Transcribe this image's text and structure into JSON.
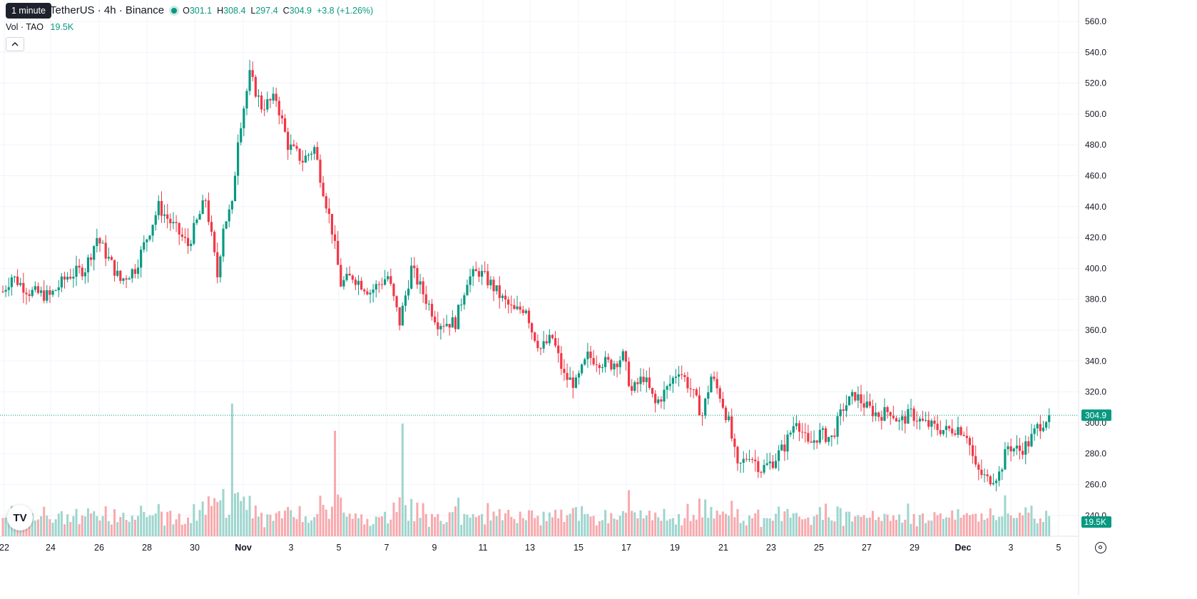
{
  "legend": {
    "symbol": "TetherUS · 4h · Binance",
    "o_label": "O",
    "o_value": "301.1",
    "h_label": "H",
    "h_value": "308.4",
    "l_label": "L",
    "l_value": "297.4",
    "c_label": "C",
    "c_value": "304.9",
    "change": "+3.8 (+1.26%)"
  },
  "volume_legend": {
    "label": "Vol · TAO",
    "value": "19.5K"
  },
  "tooltip": "1 minute",
  "collapse_icon": "chevron-up-icon",
  "logo_text": "TV",
  "colors": {
    "up": "#089981",
    "down": "#F23645",
    "up_volume": "#9ED5CE",
    "down_volume": "#F8A9AD",
    "accent": "#089981"
  },
  "chart_data": {
    "type": "candlestick",
    "interval": "4h",
    "y_axis_labels": [
      "560.0",
      "540.0",
      "520.0",
      "500.0",
      "480.0",
      "460.0",
      "440.0",
      "420.0",
      "400.0",
      "380.0",
      "360.0",
      "340.0",
      "320.0",
      "300.0",
      "280.0",
      "260.0",
      "240.0"
    ],
    "ylim": [
      240,
      560
    ],
    "x_axis_labels": [
      "22",
      "24",
      "26",
      "28",
      "30",
      "Nov",
      "3",
      "5",
      "7",
      "9",
      "11",
      "13",
      "15",
      "17",
      "19",
      "21",
      "23",
      "25",
      "27",
      "29",
      "Dec",
      "3",
      "5"
    ],
    "last_price_label": "304.9",
    "last_volume_label": "19.5K",
    "anchors": [
      {
        "c": 0,
        "p": 385
      },
      {
        "c": 3,
        "p": 395
      },
      {
        "c": 9,
        "p": 385
      },
      {
        "c": 16,
        "p": 382
      },
      {
        "c": 22,
        "p": 395
      },
      {
        "c": 28,
        "p": 400
      },
      {
        "c": 32,
        "p": 420
      },
      {
        "c": 40,
        "p": 392
      },
      {
        "c": 45,
        "p": 400
      },
      {
        "c": 53,
        "p": 440
      },
      {
        "c": 57,
        "p": 430
      },
      {
        "c": 63,
        "p": 415
      },
      {
        "c": 69,
        "p": 445
      },
      {
        "c": 73,
        "p": 395
      },
      {
        "c": 75,
        "p": 428
      },
      {
        "c": 78,
        "p": 440
      },
      {
        "c": 80,
        "p": 485
      },
      {
        "c": 84,
        "p": 525
      },
      {
        "c": 88,
        "p": 505
      },
      {
        "c": 93,
        "p": 510
      },
      {
        "c": 97,
        "p": 480
      },
      {
        "c": 102,
        "p": 470
      },
      {
        "c": 106,
        "p": 478
      },
      {
        "c": 108,
        "p": 460
      },
      {
        "c": 112,
        "p": 425
      },
      {
        "c": 115,
        "p": 390
      },
      {
        "c": 119,
        "p": 395
      },
      {
        "c": 125,
        "p": 385
      },
      {
        "c": 131,
        "p": 395
      },
      {
        "c": 135,
        "p": 365
      },
      {
        "c": 139,
        "p": 400
      },
      {
        "c": 144,
        "p": 380
      },
      {
        "c": 148,
        "p": 365
      },
      {
        "c": 154,
        "p": 365
      },
      {
        "c": 158,
        "p": 393
      },
      {
        "c": 162,
        "p": 398
      },
      {
        "c": 166,
        "p": 390
      },
      {
        "c": 170,
        "p": 380
      },
      {
        "c": 174,
        "p": 372
      },
      {
        "c": 178,
        "p": 375
      },
      {
        "c": 180,
        "p": 360
      },
      {
        "c": 183,
        "p": 348
      },
      {
        "c": 187,
        "p": 355
      },
      {
        "c": 191,
        "p": 330
      },
      {
        "c": 195,
        "p": 325
      },
      {
        "c": 199,
        "p": 343
      },
      {
        "c": 203,
        "p": 340
      },
      {
        "c": 207,
        "p": 338
      },
      {
        "c": 211,
        "p": 343
      },
      {
        "c": 214,
        "p": 320
      },
      {
        "c": 218,
        "p": 330
      },
      {
        "c": 222,
        "p": 312
      },
      {
        "c": 226,
        "p": 322
      },
      {
        "c": 230,
        "p": 335
      },
      {
        "c": 234,
        "p": 322
      },
      {
        "c": 238,
        "p": 305
      },
      {
        "c": 241,
        "p": 330
      },
      {
        "c": 244,
        "p": 318
      },
      {
        "c": 247,
        "p": 300
      },
      {
        "c": 250,
        "p": 270
      },
      {
        "c": 254,
        "p": 280
      },
      {
        "c": 258,
        "p": 270
      },
      {
        "c": 262,
        "p": 275
      },
      {
        "c": 266,
        "p": 285
      },
      {
        "c": 270,
        "p": 303
      },
      {
        "c": 274,
        "p": 285
      },
      {
        "c": 278,
        "p": 293
      },
      {
        "c": 282,
        "p": 290
      },
      {
        "c": 286,
        "p": 310
      },
      {
        "c": 290,
        "p": 318
      },
      {
        "c": 294,
        "p": 310
      },
      {
        "c": 298,
        "p": 305
      },
      {
        "c": 302,
        "p": 308
      },
      {
        "c": 305,
        "p": 300
      },
      {
        "c": 309,
        "p": 306
      },
      {
        "c": 313,
        "p": 300
      },
      {
        "c": 317,
        "p": 297
      },
      {
        "c": 321,
        "p": 295
      },
      {
        "c": 325,
        "p": 297
      },
      {
        "c": 328,
        "p": 293
      },
      {
        "c": 331,
        "p": 270
      },
      {
        "c": 335,
        "p": 263
      },
      {
        "c": 339,
        "p": 267
      },
      {
        "c": 342,
        "p": 285
      },
      {
        "c": 346,
        "p": 282
      },
      {
        "c": 349,
        "p": 287
      },
      {
        "c": 352,
        "p": 297
      },
      {
        "c": 356,
        "p": 305
      }
    ]
  }
}
